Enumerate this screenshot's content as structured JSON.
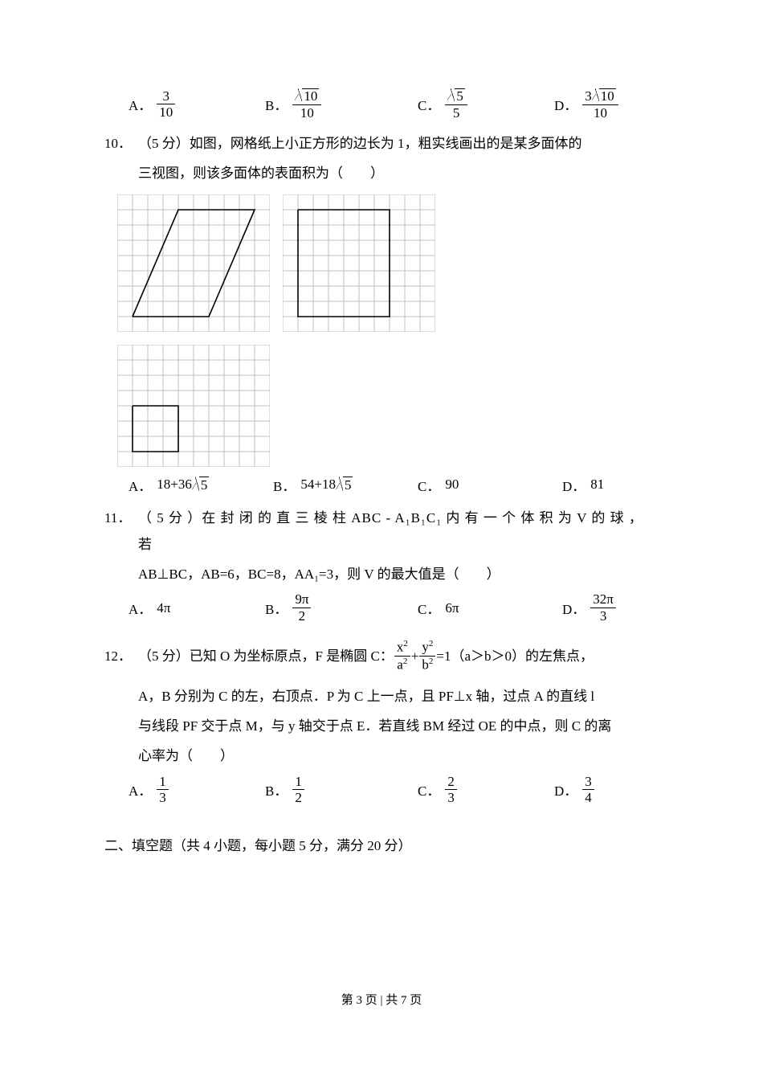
{
  "q9_choices": {
    "A_num": "3",
    "A_den": "10",
    "B_num_coef": "",
    "B_num_rad": "10",
    "B_den": "10",
    "C_num_rad": "5",
    "C_den": "5",
    "D_num_coef": "3",
    "D_num_rad": "10",
    "D_den": "10",
    "widths": [
      170,
      190,
      170,
      120
    ]
  },
  "q10": {
    "num": "10．",
    "score": "（5 分）",
    "text1": "如图，网格纸上小正方形的边长为 1，粗实线画出的是某多面体的",
    "text2": "三视图，则该多面体的表面积为（　　）",
    "choices": {
      "A_pre": "18",
      "A_op": "+",
      "A_coef": "36",
      "A_rad": "5",
      "B_pre": "54",
      "B_op": "+",
      "B_coef": "18",
      "B_rad": "5",
      "C": "90",
      "D": "81",
      "widths": [
        180,
        180,
        180,
        120
      ]
    },
    "grids": {
      "cell": 19,
      "cols": 10,
      "rows": 9,
      "grid_color": "#bfbfbf",
      "shape_color": "#000000",
      "shape_width": 1.6,
      "view1": [
        [
          1,
          8
        ],
        [
          4,
          1
        ],
        [
          9,
          1
        ],
        [
          6,
          8
        ],
        [
          1,
          8
        ]
      ],
      "view2": [
        [
          1,
          1
        ],
        [
          7,
          1
        ],
        [
          7,
          8
        ],
        [
          1,
          8
        ],
        [
          1,
          8
        ],
        [
          1,
          1
        ]
      ],
      "view3_outer": [
        [
          1,
          4
        ],
        [
          4,
          4
        ],
        [
          4,
          7
        ],
        [
          1,
          7
        ],
        [
          1,
          4
        ]
      ],
      "view3_inner_v": [
        [
          4,
          4
        ],
        [
          4,
          7
        ]
      ],
      "view3_rows": 8
    }
  },
  "q11": {
    "num": "11．",
    "score": "（ 5 分 ）",
    "text1": "在 封 闭 的 直 三 棱 柱 ABC ‑ A₁B₁C₁ 内 有 一 个 体 积 为 V 的 球 ， 若",
    "text2": "AB⊥BC，AB=6，BC=8，AA₁=3，则 V 的最大值是（　　）",
    "choices": {
      "A": "4π",
      "B_num": "9π",
      "B_den": "2",
      "C": "6π",
      "D_num": "32π",
      "D_den": "3",
      "widths": [
        170,
        190,
        180,
        120
      ]
    }
  },
  "q12": {
    "num": "12．",
    "score": "（5 分）",
    "text1_a": "已知 O 为坐标原点，F 是椭圆 C：",
    "frac1_num": "x",
    "frac1_den": "a",
    "frac2_num": "y",
    "frac2_den": "b",
    "text1_b": "=1（a＞b＞0）的左焦点，",
    "text2": "A，B 分别为 C 的左，右顶点．P 为 C 上一点，且 PF⊥x 轴，过点 A 的直线 l",
    "text3": "与线段 PF 交于点 M，与 y 轴交于点 E．若直线 BM 经过 OE 的中点，则 C 的离",
    "text4": "心率为（　　）",
    "choices": {
      "A_num": "1",
      "A_den": "3",
      "B_num": "1",
      "B_den": "2",
      "C_num": "2",
      "C_den": "3",
      "D_num": "3",
      "D_den": "4",
      "widths": [
        170,
        190,
        170,
        120
      ]
    }
  },
  "section2": "二、填空题（共 4 小题，每小题 5 分，满分 20 分）",
  "footer": "第 3 页 | 共 7 页"
}
